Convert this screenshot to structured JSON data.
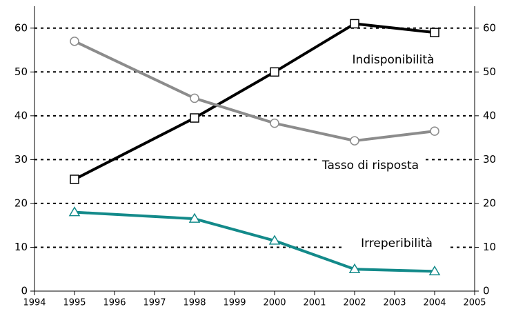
{
  "chart_data": {
    "type": "line",
    "x": [
      1995,
      1998,
      2000,
      2002,
      2004
    ],
    "series": [
      {
        "name": "Indisponibilità",
        "color": "#000000",
        "marker": "square",
        "values": [
          25.5,
          39.5,
          50,
          61,
          59
        ]
      },
      {
        "name": "Tasso di risposta",
        "color": "#8c8c8c",
        "marker": "circle",
        "values": [
          57,
          44,
          38.3,
          34.3,
          36.5
        ]
      },
      {
        "name": "Irreperibilità",
        "color": "#138a8a",
        "marker": "triangle",
        "values": [
          18,
          16.5,
          11.5,
          5,
          4.5
        ]
      }
    ],
    "xlim": [
      1994,
      2005
    ],
    "xticks": [
      1994,
      1995,
      1996,
      1997,
      1998,
      1999,
      2000,
      2001,
      2002,
      2003,
      2004,
      2005
    ],
    "ylim": [
      0,
      65
    ],
    "yticks": [
      0,
      10,
      20,
      30,
      40,
      50,
      60
    ],
    "y2lim": [
      0,
      65
    ],
    "y2ticks": [
      0,
      10,
      20,
      30,
      40,
      50,
      60
    ],
    "grid": true
  }
}
